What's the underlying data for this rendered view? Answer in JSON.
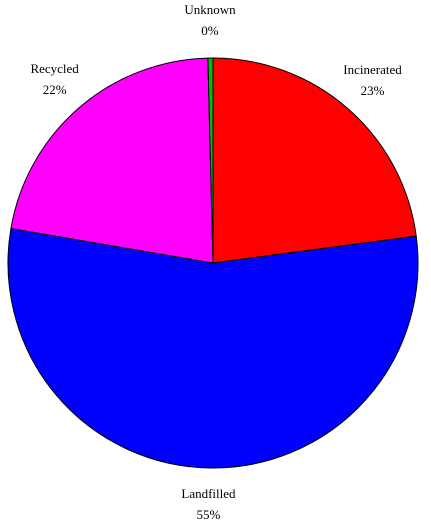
{
  "chart_data": {
    "type": "pie",
    "categories": [
      "Incinerated",
      "Landfilled",
      "Recycled",
      "Unknown"
    ],
    "values": [
      23,
      55,
      22,
      0.4
    ],
    "value_labels": [
      "23%",
      "55%",
      "22%",
      "0%"
    ],
    "colors": [
      "#ff0000",
      "#0000ff",
      "#ff00ff",
      "#00c000"
    ]
  }
}
